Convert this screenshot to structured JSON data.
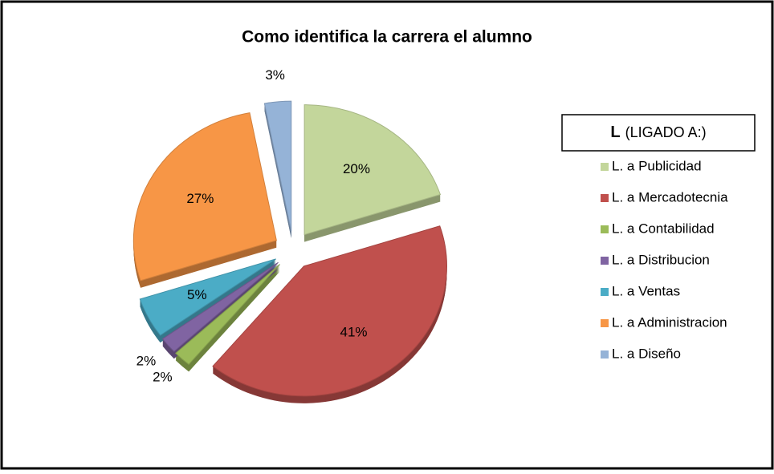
{
  "chart_data": {
    "type": "pie",
    "title": "Como identifica la carrera el alumno",
    "legend_title_bold": "L",
    "legend_title": "(LIGADO A:)",
    "legend": "right",
    "categories": [
      "L. a Publicidad",
      "L. a Mercadotecnia",
      "L. a Contabilidad",
      "L. a Distribucion",
      "L. a Ventas",
      "L. a Administracion",
      "L. a Diseño"
    ],
    "values": [
      20,
      41,
      2,
      2,
      5,
      27,
      3
    ],
    "value_labels": [
      "20%",
      "41%",
      "2%",
      "2%",
      "5%",
      "27%",
      "3%"
    ],
    "colors": [
      "#c3d69b",
      "#c0504d",
      "#9bbb59",
      "#8064a2",
      "#4bacc6",
      "#f79646",
      "#95b3d7"
    ]
  }
}
